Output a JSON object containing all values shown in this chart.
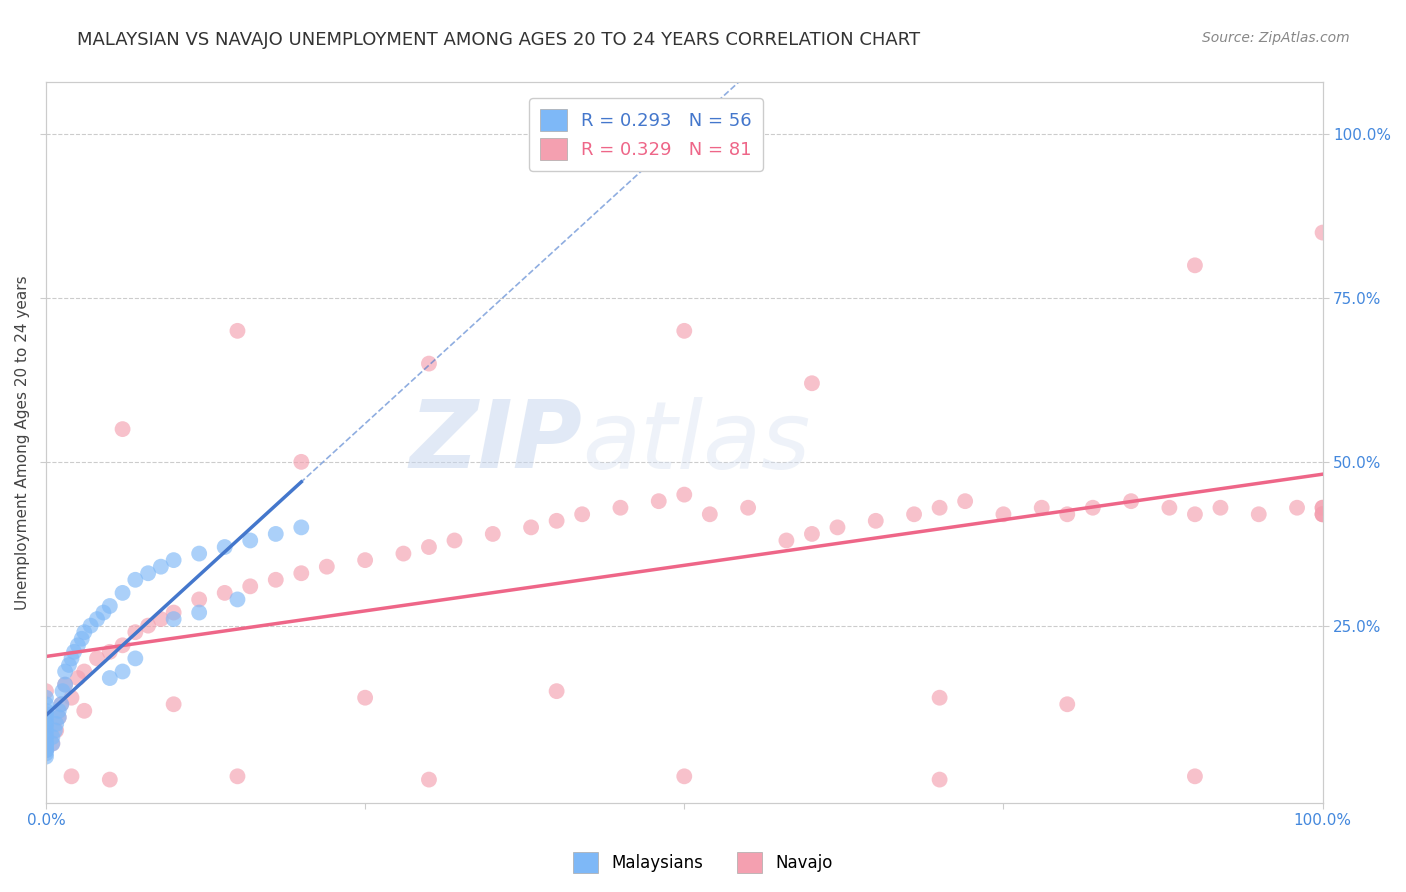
{
  "title": "MALAYSIAN VS NAVAJO UNEMPLOYMENT AMONG AGES 20 TO 24 YEARS CORRELATION CHART",
  "source": "Source: ZipAtlas.com",
  "ylabel": "Unemployment Among Ages 20 to 24 years",
  "xlabel": "",
  "xlim": [
    0.0,
    1.0
  ],
  "ylim": [
    -0.02,
    1.08
  ],
  "xticks": [
    0.0,
    0.25,
    0.5,
    0.75,
    1.0
  ],
  "yticks": [
    0.25,
    0.5,
    0.75,
    1.0
  ],
  "xtick_labels": [
    "0.0%",
    "",
    "",
    "",
    "100.0%"
  ],
  "ytick_labels_right": [
    "25.0%",
    "50.0%",
    "75.0%",
    "100.0%"
  ],
  "background_color": "#ffffff",
  "grid_color": "#cccccc",
  "malaysian_color": "#7eb8f7",
  "navajo_color": "#f4a0b0",
  "malaysian_line_color": "#4477cc",
  "navajo_line_color": "#ee6688",
  "malaysian_R": 0.293,
  "malaysian_N": 56,
  "navajo_R": 0.329,
  "navajo_N": 81,
  "watermark_zip": "ZIP",
  "watermark_atlas": "atlas",
  "tick_color": "#4488dd",
  "title_fontsize": 13,
  "axis_label_fontsize": 11,
  "tick_fontsize": 11,
  "legend_fontsize": 13,
  "source_fontsize": 10,
  "malaysian_x": [
    0.0,
    0.0,
    0.0,
    0.0,
    0.0,
    0.0,
    0.0,
    0.0,
    0.0,
    0.0,
    0.0,
    0.0,
    0.0,
    0.0,
    0.0,
    0.0,
    0.0,
    0.0,
    0.0,
    0.0,
    0.005,
    0.005,
    0.007,
    0.008,
    0.01,
    0.01,
    0.012,
    0.013,
    0.015,
    0.015,
    0.018,
    0.02,
    0.022,
    0.025,
    0.028,
    0.03,
    0.035,
    0.04,
    0.045,
    0.05,
    0.06,
    0.07,
    0.08,
    0.09,
    0.1,
    0.12,
    0.14,
    0.16,
    0.18,
    0.2,
    0.05,
    0.06,
    0.07,
    0.1,
    0.12,
    0.15
  ],
  "malaysian_y": [
    0.05,
    0.055,
    0.06,
    0.06,
    0.065,
    0.065,
    0.07,
    0.07,
    0.075,
    0.08,
    0.085,
    0.09,
    0.095,
    0.1,
    0.105,
    0.11,
    0.115,
    0.12,
    0.13,
    0.14,
    0.07,
    0.08,
    0.09,
    0.1,
    0.11,
    0.12,
    0.13,
    0.15,
    0.16,
    0.18,
    0.19,
    0.2,
    0.21,
    0.22,
    0.23,
    0.24,
    0.25,
    0.26,
    0.27,
    0.28,
    0.3,
    0.32,
    0.33,
    0.34,
    0.35,
    0.36,
    0.37,
    0.38,
    0.39,
    0.4,
    0.17,
    0.18,
    0.2,
    0.26,
    0.27,
    0.29
  ],
  "navajo_x": [
    0.0,
    0.0,
    0.0,
    0.0,
    0.005,
    0.008,
    0.01,
    0.012,
    0.015,
    0.02,
    0.025,
    0.03,
    0.04,
    0.05,
    0.06,
    0.07,
    0.08,
    0.09,
    0.1,
    0.12,
    0.14,
    0.16,
    0.18,
    0.2,
    0.22,
    0.25,
    0.28,
    0.3,
    0.32,
    0.35,
    0.38,
    0.4,
    0.42,
    0.45,
    0.48,
    0.5,
    0.52,
    0.55,
    0.58,
    0.6,
    0.62,
    0.65,
    0.68,
    0.7,
    0.72,
    0.75,
    0.78,
    0.8,
    0.82,
    0.85,
    0.88,
    0.9,
    0.92,
    0.95,
    0.98,
    1.0,
    1.0,
    1.0,
    1.0,
    1.0,
    0.03,
    0.06,
    0.1,
    0.15,
    0.2,
    0.25,
    0.3,
    0.4,
    0.5,
    0.6,
    0.7,
    0.8,
    0.9,
    1.0,
    0.02,
    0.05,
    0.15,
    0.3,
    0.5,
    0.7,
    0.9
  ],
  "navajo_y": [
    0.06,
    0.08,
    0.1,
    0.15,
    0.07,
    0.09,
    0.11,
    0.13,
    0.16,
    0.14,
    0.17,
    0.18,
    0.2,
    0.21,
    0.22,
    0.24,
    0.25,
    0.26,
    0.27,
    0.29,
    0.3,
    0.31,
    0.32,
    0.33,
    0.34,
    0.35,
    0.36,
    0.37,
    0.38,
    0.39,
    0.4,
    0.41,
    0.42,
    0.43,
    0.44,
    0.45,
    0.42,
    0.43,
    0.38,
    0.39,
    0.4,
    0.41,
    0.42,
    0.43,
    0.44,
    0.42,
    0.43,
    0.42,
    0.43,
    0.44,
    0.43,
    0.42,
    0.43,
    0.42,
    0.43,
    0.42,
    0.43,
    0.42,
    0.43,
    0.42,
    0.12,
    0.55,
    0.13,
    0.7,
    0.5,
    0.14,
    0.65,
    0.15,
    0.7,
    0.62,
    0.14,
    0.13,
    0.8,
    0.85,
    0.02,
    0.015,
    0.02,
    0.015,
    0.02,
    0.015,
    0.02
  ]
}
